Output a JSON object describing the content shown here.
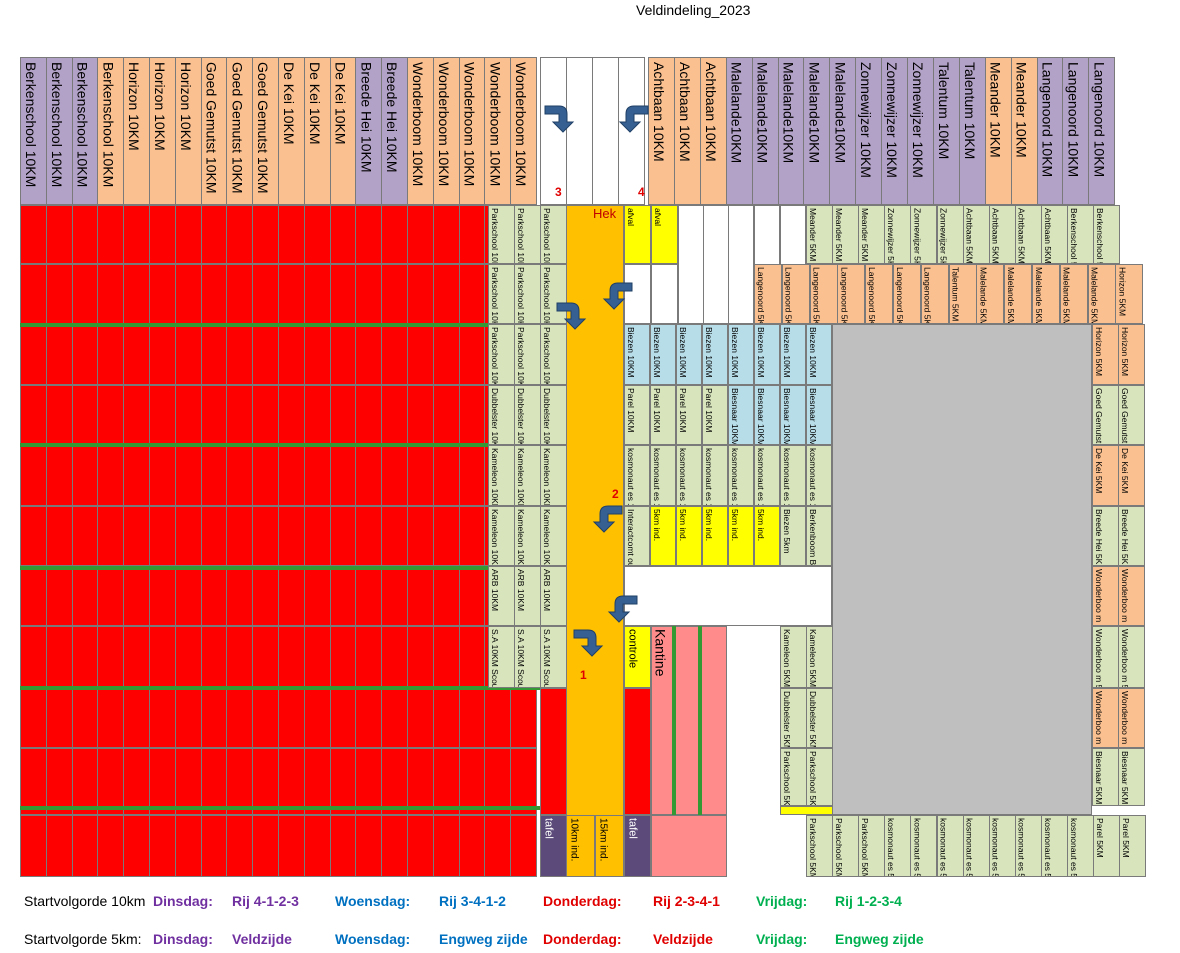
{
  "title": "Veldindeling_2023",
  "headers_left": [
    "Berkenschool 10KM",
    "Berkenschool 10KM",
    "Berkenschool 10KM",
    "Berkenschool 10KM",
    "Horizon 10KM",
    "Horizon 10KM",
    "Horizon 10KM",
    "Goed Gemutst 10KM",
    "Goed Gemutst 10KM",
    "Goed Gemutst 10KM",
    "De Kei 10KM",
    "De Kei 10KM",
    "De Kei 10KM",
    "Breede Hei 10KM",
    "Breede Hei 10KM",
    "Wonderboom 10KM",
    "Wonderboom 10KM",
    "Wonderboom 10KM",
    "Wonderboom 10KM",
    "Wonderboom 10KM"
  ],
  "headers_right": [
    "Achtbaan 10KM",
    "Achtbaan 10KM",
    "Achtbaan 10KM",
    "Malelande10KM",
    "Malelande10KM",
    "Malelande10KM",
    "Malelande10KM",
    "Malelande10KM",
    "Zonnewijzer 10KM",
    "Zonnewijzer 10KM",
    "Zonnewijzer 10KM",
    "Talentum 10KM",
    "Talentum 10KM",
    "Meander 10KM",
    "Meander 10KM",
    "Langenoord 10KM",
    "Langenoord 10KM",
    "Langenoord 10KM"
  ],
  "markers": {
    "n1": "1",
    "n2": "2",
    "n3": "3",
    "n4": "4"
  },
  "labels": {
    "hek": "Hek",
    "kantine": "Kantine",
    "controle": "controle",
    "afval": "afval",
    "tafel": "tafel",
    "ind10": "10km ind.",
    "ind15": "15km ind."
  },
  "block10": {
    "c1": [
      "Parkschool 10KM",
      "Parkschool 10KM",
      "Parkschool 10KM",
      "Dubbelster 10KM",
      "Kameleon 10KM",
      "Kameleon 10KM",
      "ARB 10KM",
      "S.A 10KM Scouting"
    ],
    "c2": [
      "Parkschool 10KM",
      "Parkschool 10KM",
      "Parkschool 10KM",
      "Dubbelster 10KM",
      "Kameleon 10KM",
      "Kameleon 10KM",
      "ARB 10KM",
      "S.A 10KM Scouting"
    ],
    "c3": [
      "Parkschool 10KM",
      "Parkschool 10KM",
      "Parkschool 10KM",
      "Dubbelster 10KM",
      "Kameleon 10KM",
      "Kameleon 10KM",
      "ARB 10KM",
      "S.A 10KM Scouting"
    ]
  },
  "mid": {
    "r3": [
      "Biezen 10KM",
      "Biezen 10KM",
      "Biezen 10KM",
      "Biezen 10KM",
      "Biezen 10KM",
      "Biezen 10KM",
      "Biezen 10KM",
      "Biezen 10KM"
    ],
    "r4": [
      "Parel 10KM",
      "Parel 10KM",
      "Parel 10KM",
      "Parel 10KM",
      "Biesnaar 10KM",
      "Biesnaar 10KM",
      "Biesnaar 10KM",
      "Biesnaar 10KM"
    ],
    "r5": [
      "kosmonaut es 10KM",
      "kosmonaut es 10KM",
      "kosmonaut es 10KM",
      "kosmonaut es 10KM",
      "kosmonaut es 10KM",
      "kosmonaut es 10KM",
      "kosmonaut es 10KM",
      "kosmonaut es 10KM"
    ],
    "r6": [
      "Interactcomt our 5km",
      "5km ind.",
      "5km ind.",
      "5km ind.",
      "5km ind.",
      "5km ind.",
      "Biezen 5km",
      "Berkenboom Biezen 5km"
    ]
  },
  "top5": {
    "r1": [
      "Meander 5KM",
      "Meander 5KM",
      "Meander 5KM",
      "Zonnewijzer 5KM",
      "Zonnewijzer 5KM",
      "Zonnewijzer 5KM",
      "Achtbaan 5KM",
      "Achtbaan 5KM",
      "Achtbaan 5KM",
      "Achtbaan 5KM",
      "Berkenschool 5KM",
      "Berkenschool 5KM"
    ],
    "r2": [
      "Langenoord 5KM",
      "Langenoord 5KM",
      "Langenoord 5KM",
      "Langenoord 5KM",
      "Langenoord 5KM",
      "Langenoord 5KM",
      "Langenoord 5KM",
      "Talentum 5KM",
      "Malelande 5KM",
      "Malelande 5KM",
      "Malelande 5KM",
      "Malelande 5KM",
      "Malelande 5KM",
      "Horizon 5KM"
    ]
  },
  "right5": [
    "Horizon 5KM",
    "Horizon 5KM",
    "Goed Gemutst 5KM",
    "Goed Gemutst 5KM",
    "De Kei 5KM",
    "De Kei 5KM",
    "Breede Hei 5KM",
    "Breede Hei 5KM",
    "Wonderboo m 5KM",
    "Wonderboo m 5KM",
    "Wonderboo m 5KM",
    "Wonderboo m 5KM",
    "Wonderboo m 5KM",
    "Wonderboo m 5KM",
    "Biesnaar 5KM",
    "Biesnaar 5KM"
  ],
  "mid5": [
    "Kameleon 5KM",
    "Kameleon 5KM",
    "Dubbelster 5KM",
    "Dubbelster 5KM",
    "Parkschool 5KM",
    "Parkschool 5KM"
  ],
  "bottom5": [
    "Parkschool 5KM",
    "Parkschool 5KM",
    "Parkschool 5KM",
    "kosmonaut es 5KM",
    "kosmonaut es 5KM",
    "kosmonaut es 5KM",
    "kosmonaut es 5KM",
    "kosmonaut es 5KM",
    "kosmonaut es 5KM",
    "kosmonaut es 5KM",
    "kosmonaut es 5KM",
    "Parel 5KM",
    "Parel 5KM"
  ],
  "legend": {
    "row1_label": "Startvolgorde 10km",
    "row2_label": "Startvolgorde 5km:",
    "di": "Dinsdag:",
    "wo": "Woensdag:",
    "do": "Donderdag:",
    "vr": "Vrijdag:",
    "r1_di": "Rij 4-1-2-3",
    "r1_wo": "Rij 3-4-1-2",
    "r1_do": "Rij 2-3-4-1",
    "r1_vr": "Rij 1-2-3-4",
    "r2_di": "Veldzijde",
    "r2_wo": "Engweg zijde",
    "r2_do": "Veldzijde",
    "r2_vr": "Engweg zijde",
    "colors": {
      "purple": "#7030a0",
      "blue": "#0070c0",
      "red": "#e00000",
      "green": "#00b050"
    }
  }
}
